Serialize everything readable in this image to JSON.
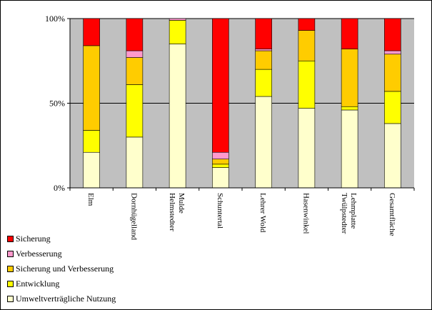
{
  "chart_data": {
    "type": "bar",
    "stacked": true,
    "percent": true,
    "categories": [
      "Elm",
      "Dornhügelland",
      "Helmstedter Mulde",
      "Schuntertal",
      "Lehrer Wold",
      "Hasenwinkel",
      "Twülpstedter Lehmplatte",
      "Gesamtfläche"
    ],
    "y_ticks": [
      "0%",
      "50%",
      "100%"
    ],
    "ylim": [
      0,
      100
    ],
    "grid": "horizontal-major",
    "legend_position": "bottom-left",
    "plot_background": "#C0C0C0",
    "series": [
      {
        "name": "Umweltverträgliche Nutzung",
        "color": "#FFFFCC",
        "values": [
          21,
          30,
          85,
          12,
          54,
          47,
          46,
          38
        ]
      },
      {
        "name": "Entwicklung",
        "color": "#FFFF00",
        "values": [
          13,
          31,
          14,
          2,
          16,
          28,
          2,
          19
        ]
      },
      {
        "name": "Sicherung und Verbesserung",
        "color": "#FFCC00",
        "values": [
          50,
          16,
          0,
          3,
          11,
          18,
          34,
          22
        ]
      },
      {
        "name": "Verbesserung",
        "color": "#FF99CC",
        "values": [
          0,
          4,
          1,
          4,
          1,
          0,
          0,
          2
        ]
      },
      {
        "name": "Sicherung",
        "color": "#FF0000",
        "values": [
          16,
          19,
          0,
          79,
          18,
          7,
          18,
          19
        ]
      }
    ]
  }
}
